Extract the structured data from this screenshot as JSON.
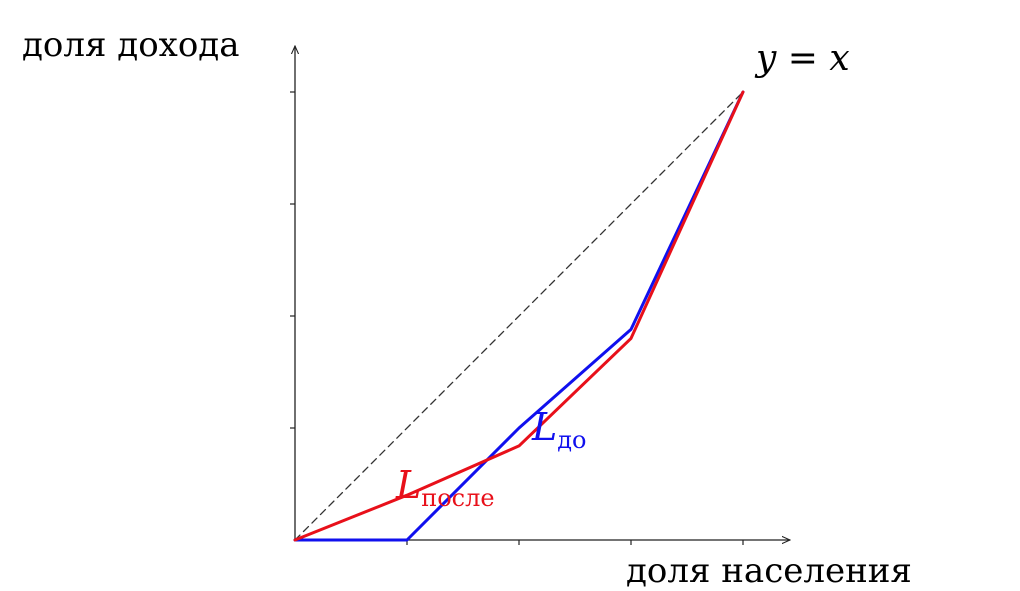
{
  "chart_data": {
    "type": "line",
    "xlabel": "доля населения",
    "ylabel": "доля дохода",
    "xlim": [
      0,
      1
    ],
    "ylim": [
      0,
      1
    ],
    "x_ticks": [
      0.25,
      0.5,
      0.75,
      1.0
    ],
    "y_ticks": [
      0.25,
      0.5,
      0.75,
      1.0
    ],
    "grid": false,
    "legend": "none",
    "series": [
      {
        "name": "y = x",
        "line_style": "dashed",
        "color": "#333333",
        "points": [
          [
            0,
            0
          ],
          [
            1,
            1
          ]
        ]
      },
      {
        "name": "L_до",
        "label_main": "L",
        "label_sub": "до",
        "color": "#1010ee",
        "points": [
          [
            0,
            0
          ],
          [
            0.25,
            0
          ],
          [
            0.5,
            0.25
          ],
          [
            0.75,
            0.47
          ],
          [
            1,
            1
          ]
        ]
      },
      {
        "name": "L_после",
        "label_main": "L",
        "label_sub": "после",
        "color": "#e8101a",
        "points": [
          [
            0,
            0
          ],
          [
            0.25,
            0.1
          ],
          [
            0.5,
            0.21
          ],
          [
            0.75,
            0.45
          ],
          [
            1,
            1
          ]
        ]
      }
    ]
  }
}
